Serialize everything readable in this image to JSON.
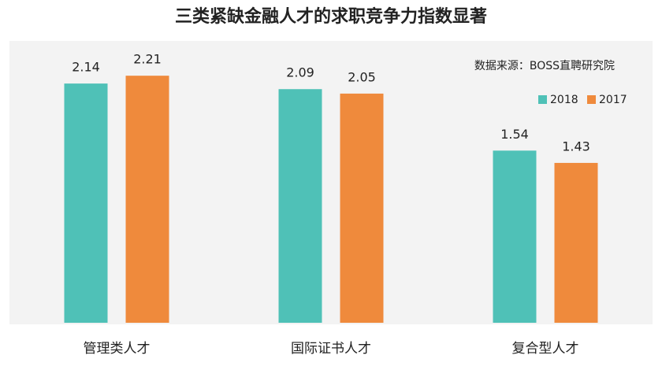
{
  "chart_data": {
    "type": "bar",
    "title": "三类紧缺金融人才的求职竞争力指数显著",
    "source": "数据来源：BOSS直聘研究院",
    "categories": [
      "管理类人才",
      "国际证书人才",
      "复合型人才"
    ],
    "series": [
      {
        "name": "2018",
        "color": "#4fc1b7",
        "values": [
          2.14,
          2.09,
          1.54
        ]
      },
      {
        "name": "2017",
        "color": "#ef8a3c",
        "values": [
          2.21,
          2.05,
          1.43
        ]
      }
    ],
    "ylim": [
      0,
      2.5
    ],
    "legend": "upper right"
  }
}
